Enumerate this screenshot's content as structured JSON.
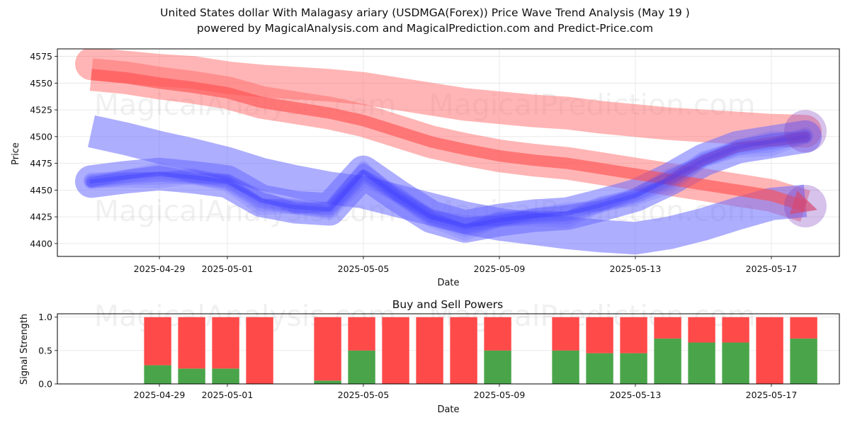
{
  "figure": {
    "title_line1": "United States dollar With Malagasy ariary (USDMGA(Forex)) Price Wave Trend Analysis (May 19 )",
    "title_line2": "powered by MagicalAnalysis.com and MagicalPrediction.com and Predict-Price.com",
    "watermarks": [
      "MagicalAnalysis.com",
      "MagicalPrediction.com"
    ]
  },
  "chart_data": [
    {
      "type": "line",
      "title": "",
      "xlabel": "Date",
      "ylabel": "Price",
      "xlim": [
        "2025-04-26",
        "2025-05-19"
      ],
      "ylim": [
        4388,
        4582
      ],
      "x_ticks": [
        "2025-04-29",
        "2025-05-01",
        "2025-05-05",
        "2025-05-09",
        "2025-05-13",
        "2025-05-17"
      ],
      "y_ticks": [
        4400,
        4425,
        4450,
        4475,
        4500,
        4525,
        4550,
        4575
      ],
      "grid": true,
      "colors": {
        "red_band": "#ff6b6b",
        "blue_band": "#6b6bff",
        "red_arrow": "#ff4d4d",
        "blue_line": "#3a3aff",
        "purple": "#8040c0"
      },
      "series": [
        {
          "color": "red",
          "x": [
            "2025-04-27",
            "2025-04-28",
            "2025-04-29",
            "2025-04-30",
            "2025-05-01",
            "2025-05-02",
            "2025-05-03",
            "2025-05-04",
            "2025-05-05",
            "2025-05-06",
            "2025-05-07",
            "2025-05-08",
            "2025-05-09",
            "2025-05-10",
            "2025-05-11",
            "2025-05-12",
            "2025-05-13",
            "2025-05-14",
            "2025-05-15",
            "2025-05-16",
            "2025-05-17",
            "2025-05-18"
          ],
          "values": [
            4558,
            4555,
            4550,
            4546,
            4541,
            4532,
            4527,
            4522,
            4515,
            4505,
            4495,
            4488,
            4482,
            4478,
            4475,
            4470,
            4465,
            4460,
            4455,
            4450,
            4445,
            4435
          ]
        },
        {
          "color": "red",
          "x": [
            "2025-04-27",
            "2025-04-28",
            "2025-04-29",
            "2025-04-30",
            "2025-05-01",
            "2025-05-02",
            "2025-05-03",
            "2025-05-04",
            "2025-05-05",
            "2025-05-06",
            "2025-05-07",
            "2025-05-08",
            "2025-05-09",
            "2025-05-10",
            "2025-05-11",
            "2025-05-12",
            "2025-05-13",
            "2025-05-14",
            "2025-05-15",
            "2025-05-16",
            "2025-05-17",
            "2025-05-18"
          ],
          "values": [
            4568,
            4565,
            4562,
            4560,
            4555,
            4552,
            4550,
            4548,
            4545,
            4540,
            4535,
            4530,
            4527,
            4524,
            4522,
            4518,
            4515,
            4512,
            4510,
            4508,
            4506,
            4505
          ]
        },
        {
          "color": "blue",
          "x": [
            "2025-04-27",
            "2025-04-28",
            "2025-04-29",
            "2025-04-30",
            "2025-05-01",
            "2025-05-02",
            "2025-05-03",
            "2025-05-04",
            "2025-05-05",
            "2025-05-06",
            "2025-05-07",
            "2025-05-08",
            "2025-05-09",
            "2025-05-10",
            "2025-05-11",
            "2025-05-12",
            "2025-05-13",
            "2025-05-14",
            "2025-05-15",
            "2025-05-16",
            "2025-05-17",
            "2025-05-18"
          ],
          "values": [
            4505,
            4498,
            4490,
            4483,
            4475,
            4465,
            4458,
            4452,
            4448,
            4440,
            4432,
            4424,
            4418,
            4414,
            4410,
            4407,
            4405,
            4410,
            4418,
            4428,
            4437,
            4440
          ]
        },
        {
          "color": "blue",
          "x": [
            "2025-04-27",
            "2025-04-28",
            "2025-04-29",
            "2025-04-30",
            "2025-05-01",
            "2025-05-02",
            "2025-05-03",
            "2025-05-04",
            "2025-05-05",
            "2025-05-06",
            "2025-05-07",
            "2025-05-08",
            "2025-05-09",
            "2025-05-10",
            "2025-05-11",
            "2025-05-12",
            "2025-05-13",
            "2025-05-14",
            "2025-05-15",
            "2025-05-16",
            "2025-05-17",
            "2025-05-18"
          ],
          "values": [
            4458,
            4462,
            4465,
            4462,
            4458,
            4440,
            4434,
            4432,
            4467,
            4445,
            4425,
            4416,
            4422,
            4426,
            4428,
            4436,
            4445,
            4460,
            4478,
            4490,
            4495,
            4500
          ]
        }
      ]
    },
    {
      "type": "bar",
      "title": "Buy and Sell Powers",
      "xlabel": "Date",
      "ylabel": "Signal Strength",
      "ylim": [
        0,
        1.05
      ],
      "x_ticks": [
        "2025-04-29",
        "2025-05-01",
        "2025-05-05",
        "2025-05-09",
        "2025-05-13",
        "2025-05-17"
      ],
      "y_ticks": [
        "0.0",
        "0.5",
        "1.0"
      ],
      "colors": {
        "buy": "#4aa54a",
        "sell": "#ff4a4a"
      },
      "categories": [
        "2025-04-29",
        "2025-04-30",
        "2025-05-01",
        "2025-05-02",
        "2025-05-04",
        "2025-05-05",
        "2025-05-06",
        "2025-05-07",
        "2025-05-08",
        "2025-05-09",
        "2025-05-11",
        "2025-05-12",
        "2025-05-13",
        "2025-05-14",
        "2025-05-15",
        "2025-05-16",
        "2025-05-17",
        "2025-05-18"
      ],
      "series": [
        {
          "values": [
            0.28,
            0.23,
            0.23,
            0.0,
            0.05,
            0.5,
            0.0,
            0.0,
            0.0,
            0.5,
            0.5,
            0.46,
            0.46,
            0.68,
            0.62,
            0.62,
            0.0,
            0.68
          ]
        },
        {
          "values": [
            0.72,
            0.77,
            0.77,
            1.0,
            0.95,
            0.5,
            1.0,
            1.0,
            1.0,
            0.5,
            0.5,
            0.54,
            0.54,
            0.32,
            0.38,
            0.38,
            1.0,
            0.32
          ]
        }
      ]
    }
  ]
}
